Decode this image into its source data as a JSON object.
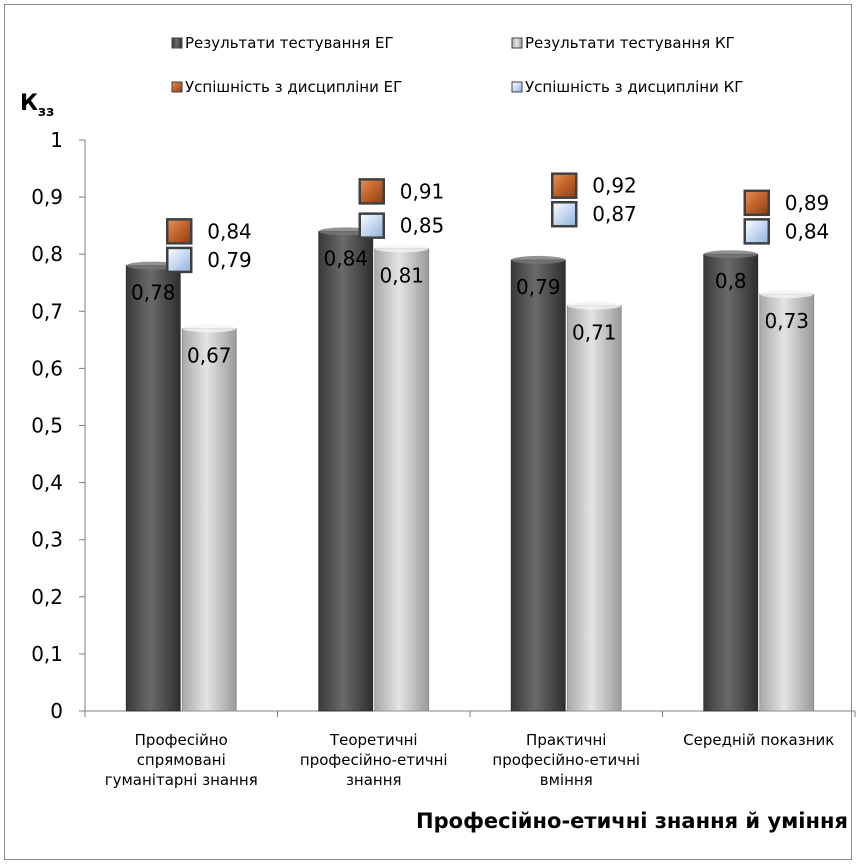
{
  "chart_data": {
    "type": "bar",
    "xlabel": "Професійно-етичні знання й уміння",
    "ylabel_main": "К",
    "ylabel_sub": "зз",
    "ylim": [
      0,
      1
    ],
    "yticks": [
      "0",
      "0,1",
      "0,2",
      "0,3",
      "0,4",
      "0,5",
      "0,6",
      "0,7",
      "0,8",
      "0,9",
      "1"
    ],
    "categories": [
      [
        "Професійно",
        "спрямовані",
        "гуманітарні знання"
      ],
      [
        "Теоретичні",
        "професійно-етичні",
        "знання"
      ],
      [
        "Практичні",
        "професійно-етичні",
        "вміння"
      ],
      [
        "Середній показник"
      ]
    ],
    "series": [
      {
        "name": "Результати тестування ЕГ",
        "kind": "bar",
        "color": "#555555",
        "values": [
          0.78,
          0.84,
          0.79,
          0.8
        ],
        "labels": [
          "0,78",
          "0,84",
          "0,79",
          "0,8"
        ]
      },
      {
        "name": "Результати тестування КГ",
        "kind": "bar",
        "color": "#bfbfbf",
        "values": [
          0.67,
          0.81,
          0.71,
          0.73
        ],
        "labels": [
          "0,67",
          "0,81",
          "0,71",
          "0,73"
        ]
      },
      {
        "name": "Успішність з дисципліни ЕГ",
        "kind": "marker",
        "color": "#c0622a",
        "values": [
          0.84,
          0.91,
          0.92,
          0.89
        ],
        "labels": [
          "0,84",
          "0,91",
          "0,92",
          "0,89"
        ]
      },
      {
        "name": "Успішність з дисципліни КГ",
        "kind": "marker",
        "color": "#c6d9f1",
        "values": [
          0.79,
          0.85,
          0.87,
          0.84
        ],
        "labels": [
          "0,79",
          "0,85",
          "0,87",
          "0,84"
        ]
      }
    ],
    "legend_position": "top",
    "grid": false
  }
}
